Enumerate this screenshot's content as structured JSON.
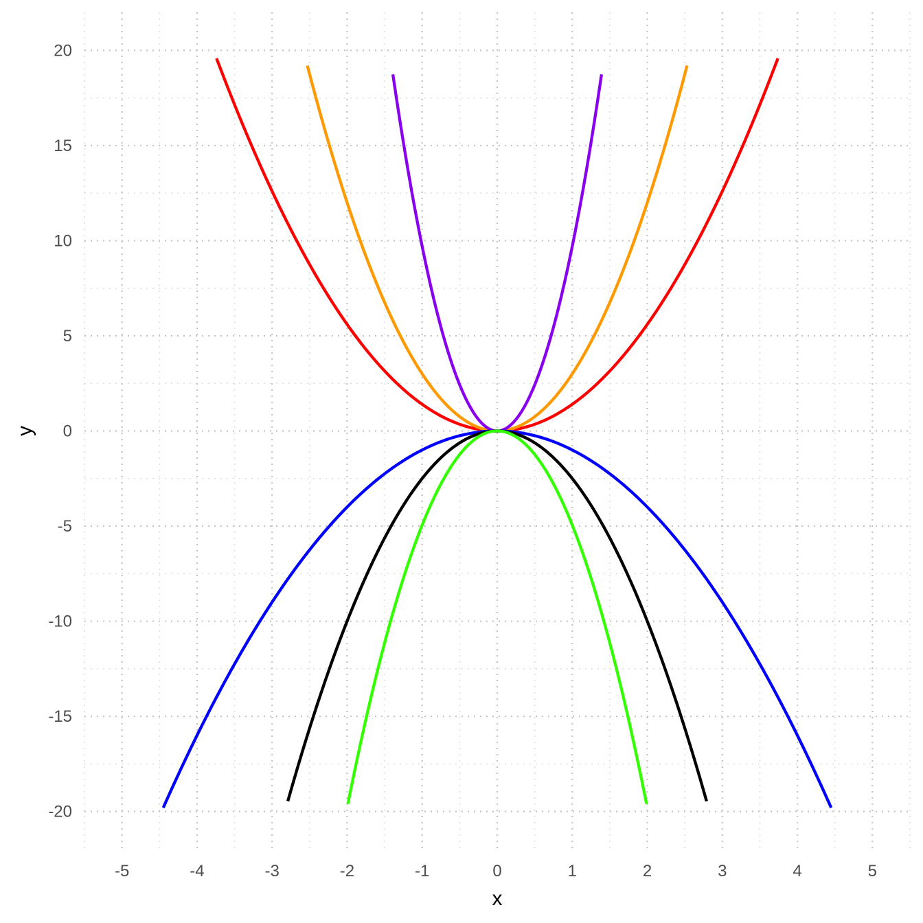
{
  "chart_data": {
    "type": "line",
    "title": "",
    "xlabel": "x",
    "ylabel": "y",
    "xlim": [
      -5.5,
      5.5
    ],
    "ylim": [
      -22,
      22
    ],
    "x_ticks": [
      -5,
      -4,
      -3,
      -2,
      -1,
      0,
      1,
      2,
      3,
      4,
      5
    ],
    "y_ticks": [
      -20,
      -15,
      -10,
      -5,
      0,
      5,
      10,
      15,
      20
    ],
    "x_tick_labels": [
      "-5",
      "-4",
      "-3",
      "-2",
      "-1",
      "0",
      "1",
      "2",
      "3",
      "4",
      "5"
    ],
    "y_tick_labels": [
      "-20",
      "-15",
      "-10",
      "-5",
      "0",
      "5",
      "10",
      "15",
      "20"
    ],
    "grid": true,
    "grid_style": "dotted",
    "legend": "none",
    "series": [
      {
        "a": 1.4,
        "x_range": [
          -3.74,
          3.74
        ],
        "color": "#ff0000"
      },
      {
        "a": 3.0,
        "x_range": [
          -2.53,
          2.53
        ],
        "color": "#ff9900"
      },
      {
        "a": 9.7,
        "x_range": [
          -1.39,
          1.39
        ],
        "color": "#8800ee"
      },
      {
        "a": -1.0,
        "x_range": [
          -4.45,
          4.45
        ],
        "color": "#0000ff"
      },
      {
        "a": -2.5,
        "x_range": [
          -2.79,
          2.79
        ],
        "color": "#000000"
      },
      {
        "a": -4.95,
        "x_range": [
          -1.99,
          1.99
        ],
        "color": "#33ff00"
      }
    ]
  }
}
